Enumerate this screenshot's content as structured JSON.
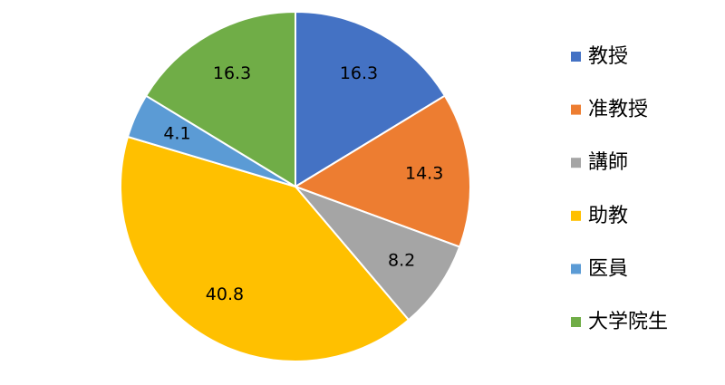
{
  "chart_data": {
    "type": "pie",
    "categories": [
      "教授",
      "准教授",
      "講師",
      "助教",
      "医員",
      "大学院生"
    ],
    "values": [
      16.3,
      14.3,
      8.2,
      40.8,
      4.1,
      16.3
    ],
    "colors": [
      "#4472c4",
      "#ed7d31",
      "#a5a5a5",
      "#ffc000",
      "#5b9bd5",
      "#70ad47"
    ],
    "legend": "right"
  }
}
